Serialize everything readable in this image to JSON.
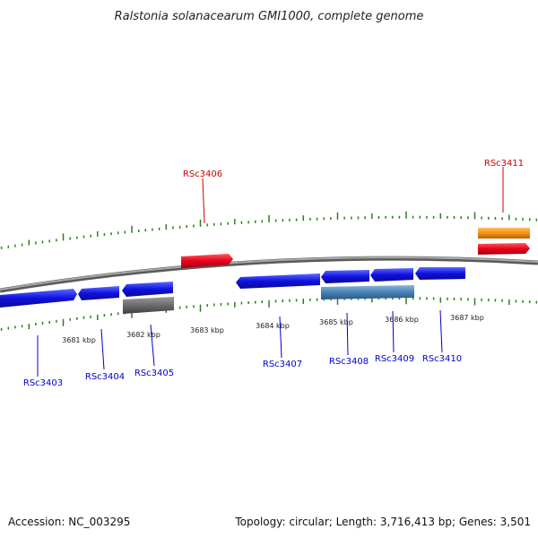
{
  "title": "Ralstonia solanacearum GMI1000, complete genome",
  "footer": {
    "accession": "Accession: NC_003295",
    "summary": "Topology: circular; Length: 3,716,413 bp; Genes: 3,501"
  },
  "colors": {
    "backbone": "#808080",
    "tick_marks": "#2e7d1e",
    "forward_gene": "#e8001c",
    "forward_feature_orange": "#f5900f",
    "reverse_gene": "#1010e0",
    "reverse_feature_gray": "#6b6b6b",
    "reverse_feature_steelblue": "#4682b4",
    "forward_label": "#cc0000",
    "reverse_label": "#0000cc"
  },
  "kbp_labels": [
    "3681 kbp",
    "3682 kbp",
    "3683 kbp",
    "3684 kbp",
    "3685 kbp",
    "3686 kbp",
    "3687 kbp"
  ],
  "genes": [
    {
      "label": "RSc3403",
      "strand": "reverse"
    },
    {
      "label": "RSc3404",
      "strand": "reverse"
    },
    {
      "label": "RSc3405",
      "strand": "reverse"
    },
    {
      "label": "RSc3406",
      "strand": "forward"
    },
    {
      "label": "RSc3407",
      "strand": "reverse"
    },
    {
      "label": "RSc3408",
      "strand": "reverse"
    },
    {
      "label": "RSc3409",
      "strand": "reverse"
    },
    {
      "label": "RSc3410",
      "strand": "reverse"
    },
    {
      "label": "RSc3411",
      "strand": "forward"
    }
  ]
}
